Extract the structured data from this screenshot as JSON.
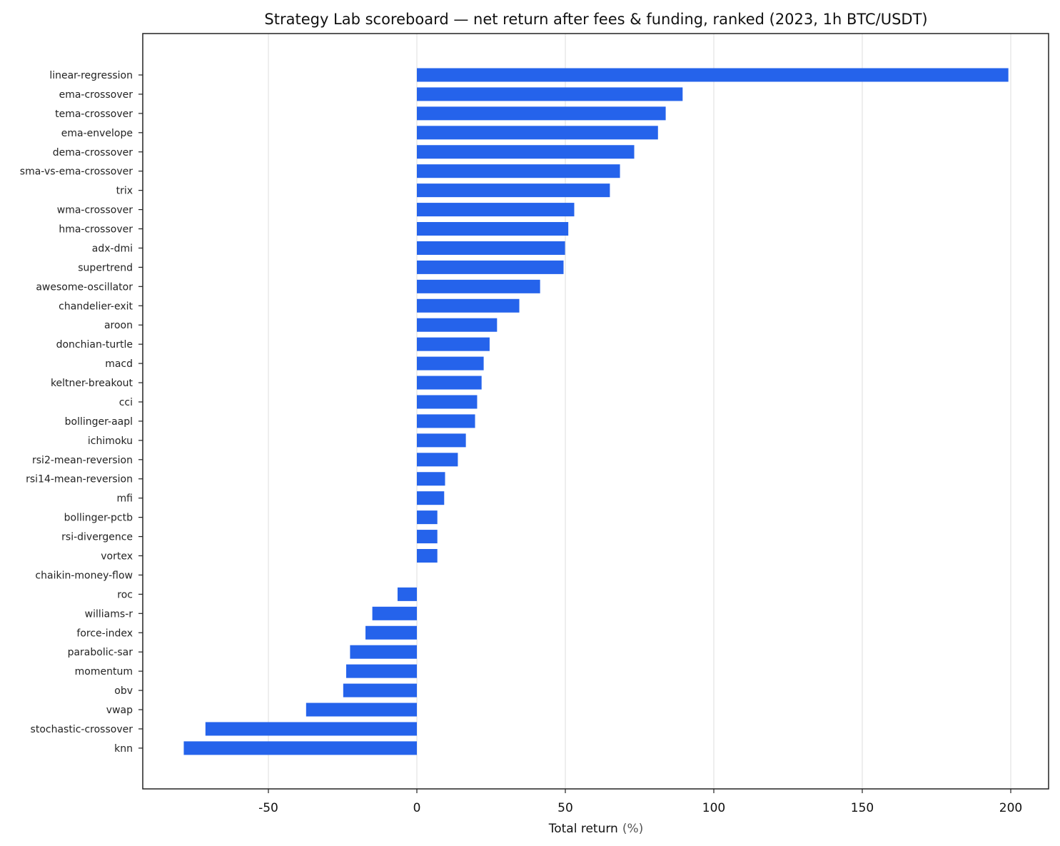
{
  "chart_data": {
    "type": "bar",
    "orientation": "horizontal",
    "title": "Strategy Lab scoreboard — net return after fees & funding, ranked (2023, 1h BTC/USDT)",
    "xlabel": "Total return",
    "xlabel_unit": "(%)",
    "ylabel": "",
    "xlim": [
      -92,
      213
    ],
    "xticks": [
      -50,
      0,
      50,
      100,
      150,
      200
    ],
    "grid": {
      "x": true,
      "y": false
    },
    "legend": "none",
    "bar_color": "#2563eb",
    "categories": [
      "linear-regression",
      "ema-crossover",
      "tema-crossover",
      "ema-envelope",
      "dema-crossover",
      "sma-vs-ema-crossover",
      "trix",
      "wma-crossover",
      "hma-crossover",
      "adx-dmi",
      "supertrend",
      "awesome-oscillator",
      "chandelier-exit",
      "aroon",
      "donchian-turtle",
      "macd",
      "keltner-breakout",
      "cci",
      "bollinger-aapl",
      "ichimoku",
      "rsi2-mean-reversion",
      "rsi14-mean-reversion",
      "mfi",
      "bollinger-pctb",
      "rsi-divergence",
      "vortex",
      "chaikin-money-flow",
      "roc",
      "williams-r",
      "force-index",
      "parabolic-sar",
      "momentum",
      "obv",
      "vwap",
      "stochastic-crossover",
      "knn"
    ],
    "values": [
      199.2,
      89.5,
      83.8,
      81.2,
      73.2,
      68.4,
      65.0,
      53.0,
      51.0,
      49.9,
      49.4,
      41.5,
      34.5,
      27.0,
      24.5,
      22.5,
      21.8,
      20.3,
      19.6,
      16.5,
      13.8,
      9.5,
      9.2,
      6.9,
      6.9,
      6.9,
      0.0,
      -6.5,
      -15.0,
      -17.3,
      -22.5,
      -23.8,
      -24.8,
      -37.3,
      -71.2,
      -78.5
    ]
  }
}
